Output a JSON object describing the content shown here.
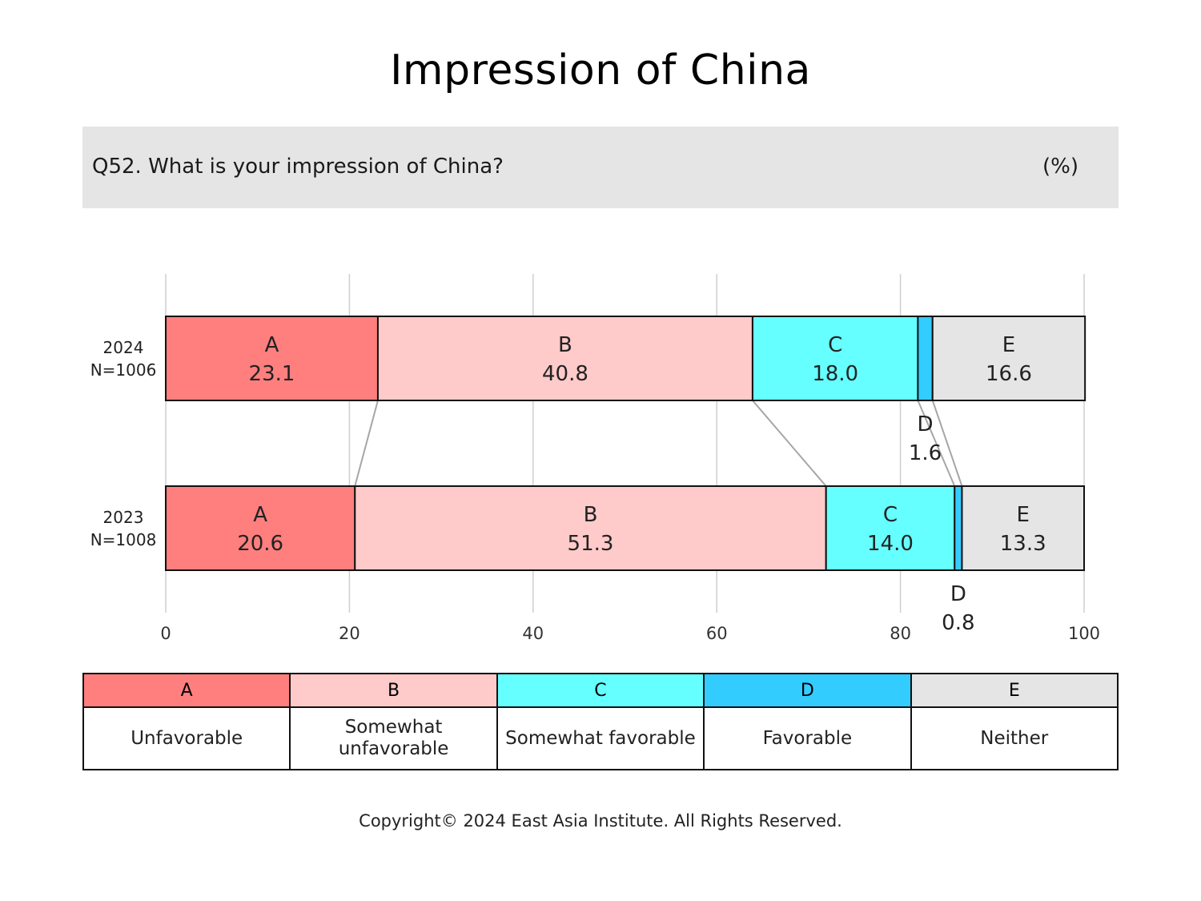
{
  "title": "Impression of China",
  "question": "Q52. What is your impression of China?",
  "unit": "(%)",
  "chart_data": {
    "type": "bar",
    "orientation": "horizontal",
    "stacked": true,
    "xlim": [
      0,
      100
    ],
    "xticks": [
      "0",
      "20",
      "40",
      "60",
      "80",
      "100"
    ],
    "grid": true,
    "rows": [
      {
        "label": "2024",
        "n": "N=1006",
        "values": [
          23.1,
          40.8,
          18.0,
          1.6,
          16.6
        ]
      },
      {
        "label": "2023",
        "n": "N=1008",
        "values": [
          20.6,
          51.3,
          14.0,
          0.8,
          13.3
        ]
      }
    ],
    "segments": [
      {
        "key": "A",
        "name": "Unfavorable",
        "color": "#ff7f7f"
      },
      {
        "key": "B",
        "name": "Somewhat unfavorable",
        "color": "#ffcaca"
      },
      {
        "key": "C",
        "name": "Somewhat favorable",
        "color": "#66ffff"
      },
      {
        "key": "D",
        "name": "Favorable",
        "color": "#33ccff"
      },
      {
        "key": "E",
        "name": "Neither",
        "color": "#e6e5e6"
      }
    ]
  },
  "legend": {
    "keys": [
      "A",
      "B",
      "C",
      "D",
      "E"
    ],
    "descriptions": [
      "Unfavorable",
      "Somewhat unfavorable",
      "Somewhat favorable",
      "Favorable",
      "Neither"
    ]
  },
  "copyright": "Copyright© 2024 East Asia Institute. All Rights Reserved."
}
